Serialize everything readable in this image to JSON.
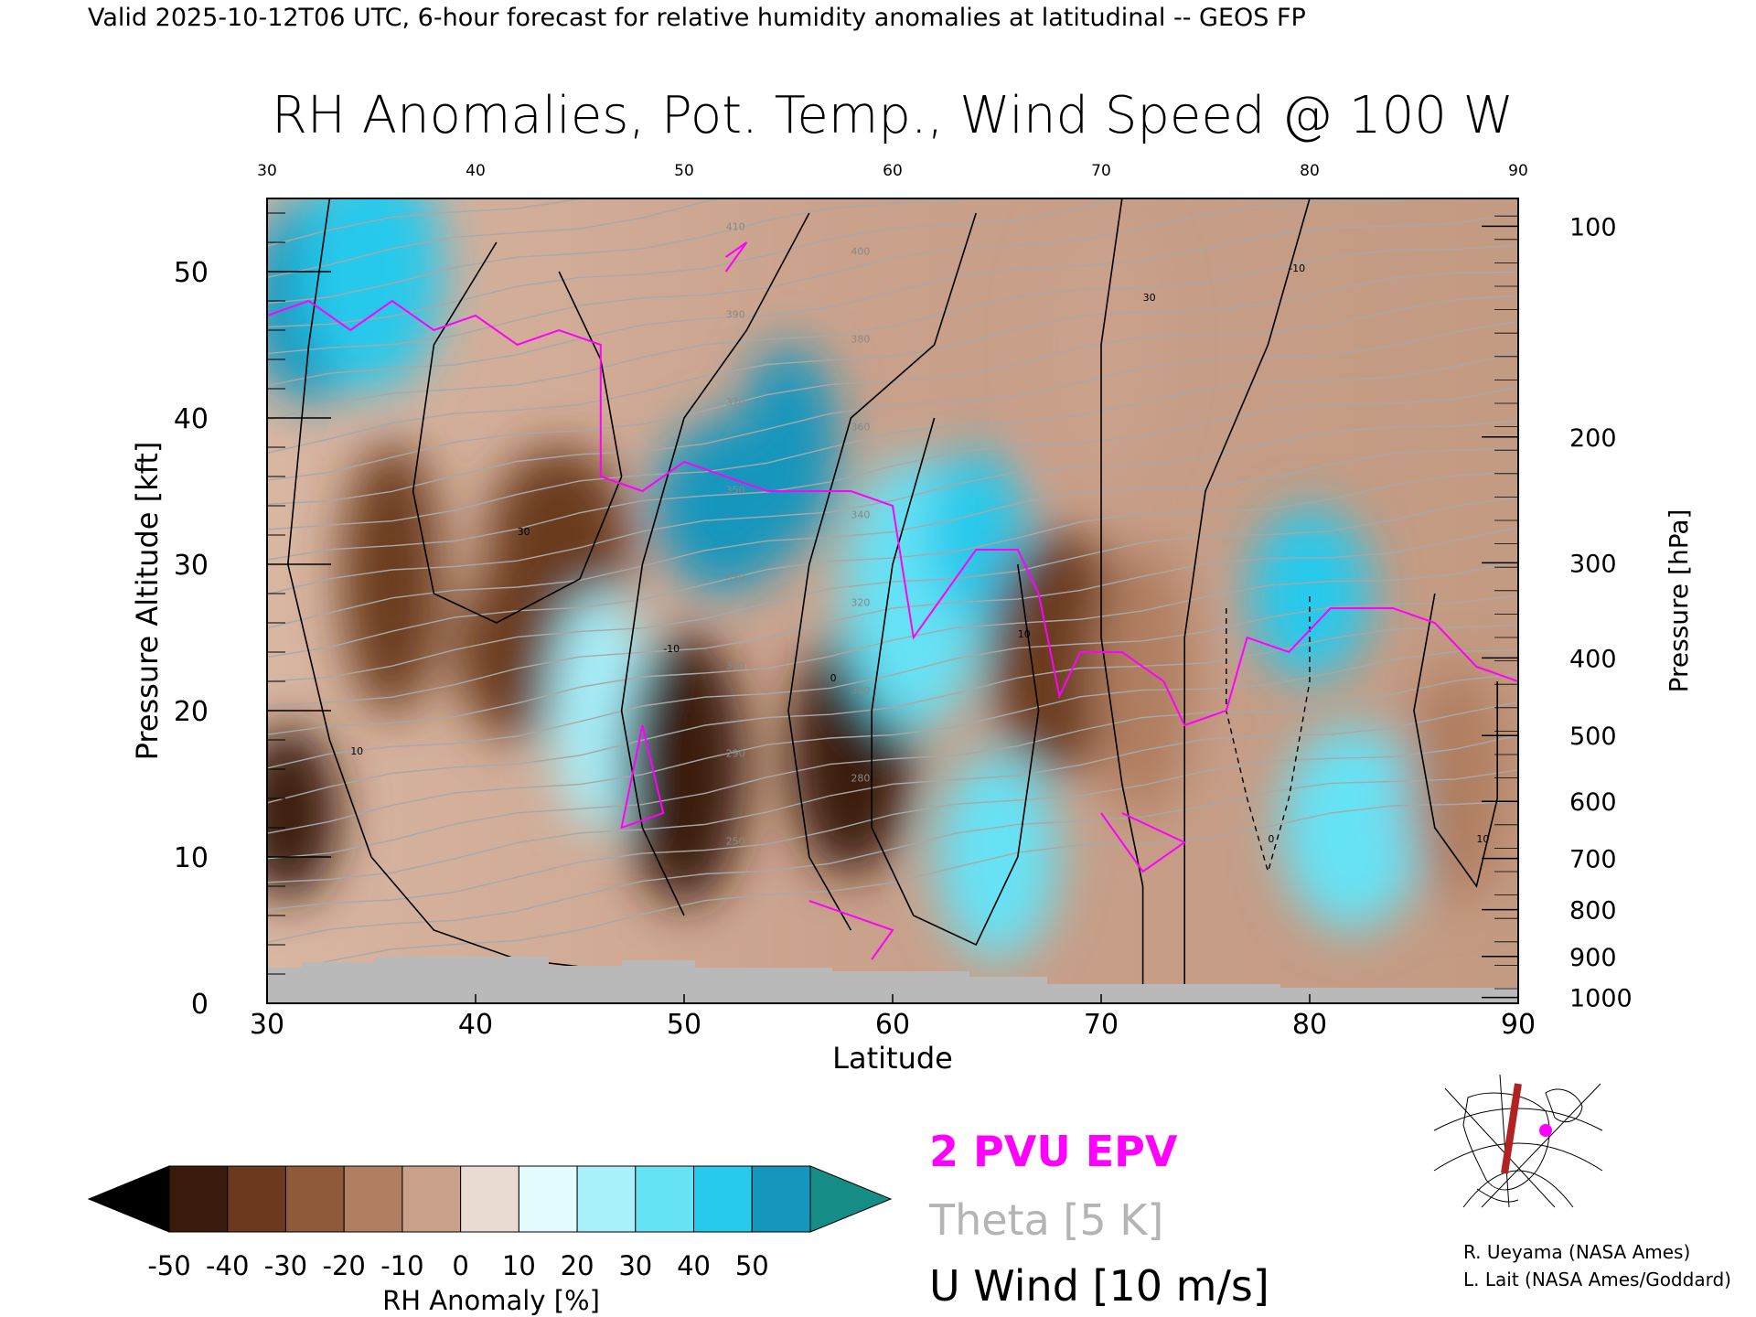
{
  "header": {
    "valid_line": "Valid 2025-10-12T06 UTC, 6-hour forecast for relative humidity anomalies at latitudinal -- GEOS FP",
    "title": "RH Anomalies, Pot. Temp., Wind Speed @ 100 W"
  },
  "chart_data": {
    "type": "heatmap",
    "title": "RH Anomalies, Pot. Temp., Wind Speed @ 100 W",
    "xlabel": "Latitude",
    "ylabel": "Pressure Altitude [kft]",
    "y2label": "Pressure [hPa]",
    "xlim": [
      30,
      90
    ],
    "ylim": [
      0,
      55
    ],
    "x_ticks": [
      "30",
      "40",
      "50",
      "60",
      "70",
      "80",
      "90"
    ],
    "top_x_ticks": [
      "30",
      "40",
      "50",
      "60",
      "70",
      "80",
      "90"
    ],
    "y_ticks": [
      "0",
      "10",
      "20",
      "30",
      "40",
      "50"
    ],
    "pressure_ticks": [
      {
        "label": "100",
        "kft": 53.1
      },
      {
        "label": "200",
        "kft": 38.7
      },
      {
        "label": "300",
        "kft": 30.1
      },
      {
        "label": "400",
        "kft": 23.6
      },
      {
        "label": "500",
        "kft": 18.3
      },
      {
        "label": "600",
        "kft": 13.8
      },
      {
        "label": "700",
        "kft": 9.9
      },
      {
        "label": "800",
        "kft": 6.4
      },
      {
        "label": "900",
        "kft": 3.2
      },
      {
        "label": "1000",
        "kft": 0.4
      }
    ],
    "colorbar": {
      "label": "RH Anomaly [%]",
      "ticks": [
        "-50",
        "-40",
        "-30",
        "-20",
        "-10",
        "0",
        "10",
        "20",
        "30",
        "40",
        "50"
      ],
      "colors": [
        "#000000",
        "#3a1a0a",
        "#6b3a1e",
        "#8f5a3a",
        "#b07e60",
        "#c9a08a",
        "#eadbd2",
        "#e4fbfd",
        "#a8f0fa",
        "#66e2f5",
        "#27c9ec",
        "#1496bd",
        "#168c86"
      ]
    },
    "anomaly_features": [
      {
        "lat": 31,
        "kft": 13,
        "value": -55
      },
      {
        "lat": 32,
        "kft": 48,
        "value": 45
      },
      {
        "lat": 35,
        "kft": 50,
        "value": 35
      },
      {
        "lat": 36,
        "kft": 29,
        "value": -40
      },
      {
        "lat": 42,
        "kft": 24,
        "value": -45
      },
      {
        "lat": 44,
        "kft": 31,
        "value": -40
      },
      {
        "lat": 46,
        "kft": 20,
        "value": 15
      },
      {
        "lat": 50,
        "kft": 16,
        "value": -50
      },
      {
        "lat": 52,
        "kft": 34,
        "value": 50
      },
      {
        "lat": 55,
        "kft": 38,
        "value": 45
      },
      {
        "lat": 58,
        "kft": 17,
        "value": -55
      },
      {
        "lat": 61,
        "kft": 28,
        "value": 30
      },
      {
        "lat": 64,
        "kft": 32,
        "value": 40
      },
      {
        "lat": 65,
        "kft": 10,
        "value": 30
      },
      {
        "lat": 68,
        "kft": 24,
        "value": -40
      },
      {
        "lat": 72,
        "kft": 22,
        "value": -20
      },
      {
        "lat": 80,
        "kft": 28,
        "value": 35
      },
      {
        "lat": 82,
        "kft": 12,
        "value": 25
      },
      {
        "lat": 87,
        "kft": 15,
        "value": -25
      },
      {
        "lat": 70,
        "kft": 45,
        "value": -15
      }
    ],
    "theta_contours_K": [
      "250",
      "280",
      "290",
      "300",
      "310",
      "320",
      "330",
      "340",
      "350",
      "360",
      "370",
      "380",
      "390",
      "400",
      "410",
      "420"
    ],
    "u_wind_contours_ms": [
      "-10",
      "0",
      "10",
      "30"
    ],
    "legend": [
      {
        "label": "2 PVU EPV",
        "color": "#ff00ff"
      },
      {
        "label": "Theta [5 K]",
        "color": "#b4b4b4"
      },
      {
        "label": "U Wind [10 m/s]",
        "color": "#000000"
      }
    ]
  },
  "credits": [
    "R. Ueyama (NASA Ames)",
    "L. Lait (NASA Ames/Goddard)"
  ]
}
